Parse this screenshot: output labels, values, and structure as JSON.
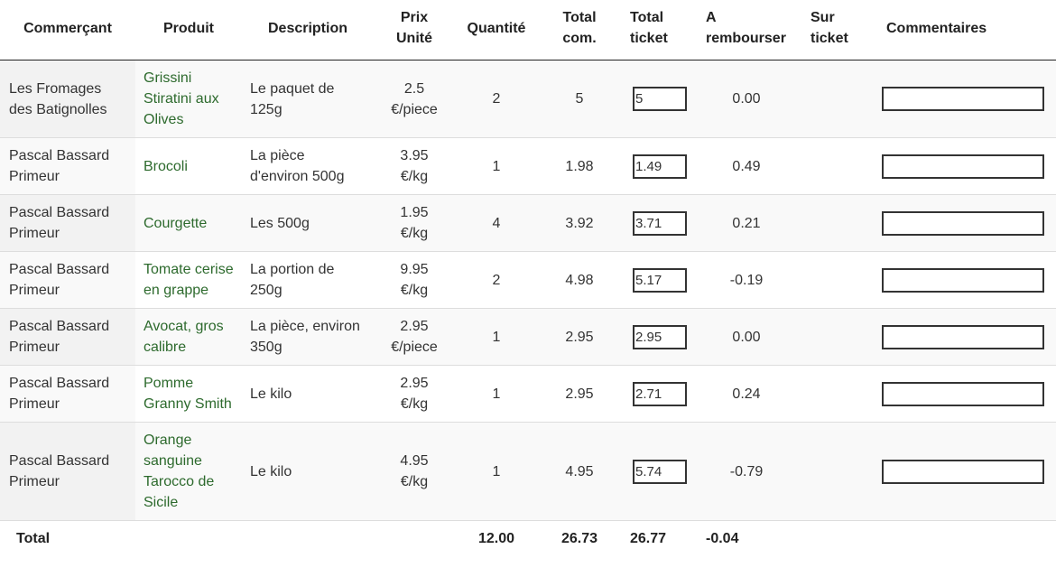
{
  "headers": {
    "merchant": "Commerçant",
    "product": "Produit",
    "description": "Description",
    "unit_price_l1": "Prix",
    "unit_price_l2": "Unité",
    "quantity": "Quantité",
    "total_com_l1": "Total",
    "total_com_l2": "com.",
    "total_ticket_l1": "Total",
    "total_ticket_l2": "ticket",
    "refund_l1": "A",
    "refund_l2": "rembourser",
    "on_ticket_l1": "Sur",
    "on_ticket_l2": "ticket",
    "comments": "Commentaires"
  },
  "rows": [
    {
      "merchant": "Les Fromages des Batignolles",
      "product": "Grissini Stiratini aux Olives",
      "description": "Le paquet de 125g",
      "price_l1": "2.5",
      "price_l2": "€/piece",
      "quantity": "2",
      "total_com": "5",
      "total_ticket": "5",
      "refund": "0.00",
      "on_ticket": "",
      "comment": ""
    },
    {
      "merchant": "Pascal Bassard Primeur",
      "product": "Brocoli",
      "description": "La pièce d'environ 500g",
      "price_l1": "3.95",
      "price_l2": "€/kg",
      "quantity": "1",
      "total_com": "1.98",
      "total_ticket": "1.49",
      "refund": "0.49",
      "on_ticket": "",
      "comment": ""
    },
    {
      "merchant": "Pascal Bassard Primeur",
      "product": "Courgette",
      "description": "Les 500g",
      "price_l1": "1.95",
      "price_l2": "€/kg",
      "quantity": "4",
      "total_com": "3.92",
      "total_ticket": "3.71",
      "refund": "0.21",
      "on_ticket": "",
      "comment": ""
    },
    {
      "merchant": "Pascal Bassard Primeur",
      "product": "Tomate cerise en grappe",
      "description": "La portion de 250g",
      "price_l1": "9.95",
      "price_l2": "€/kg",
      "quantity": "2",
      "total_com": "4.98",
      "total_ticket": "5.17",
      "refund": "-0.19",
      "on_ticket": "",
      "comment": ""
    },
    {
      "merchant": "Pascal Bassard Primeur",
      "product": "Avocat, gros calibre",
      "description": "La pièce, environ 350g",
      "price_l1": "2.95",
      "price_l2": "€/piece",
      "quantity": "1",
      "total_com": "2.95",
      "total_ticket": "2.95",
      "refund": "0.00",
      "on_ticket": "",
      "comment": ""
    },
    {
      "merchant": "Pascal Bassard Primeur",
      "product": "Pomme Granny Smith",
      "description": "Le kilo",
      "price_l1": "2.95",
      "price_l2": "€/kg",
      "quantity": "1",
      "total_com": "2.95",
      "total_ticket": "2.71",
      "refund": "0.24",
      "on_ticket": "",
      "comment": ""
    },
    {
      "merchant": "Pascal Bassard Primeur",
      "product": "Orange sanguine Tarocco de Sicile",
      "description": "Le kilo",
      "price_l1": "4.95",
      "price_l2": "€/kg",
      "quantity": "1",
      "total_com": "4.95",
      "total_ticket": "5.74",
      "refund": "-0.79",
      "on_ticket": "",
      "comment": ""
    }
  ],
  "footer": {
    "label": "Total",
    "quantity": "12.00",
    "total_com": "26.73",
    "total_ticket": "26.77",
    "refund": "-0.04"
  },
  "colors": {
    "product_link": "#2d6a2d",
    "row_alt": "#f9f9f9"
  }
}
